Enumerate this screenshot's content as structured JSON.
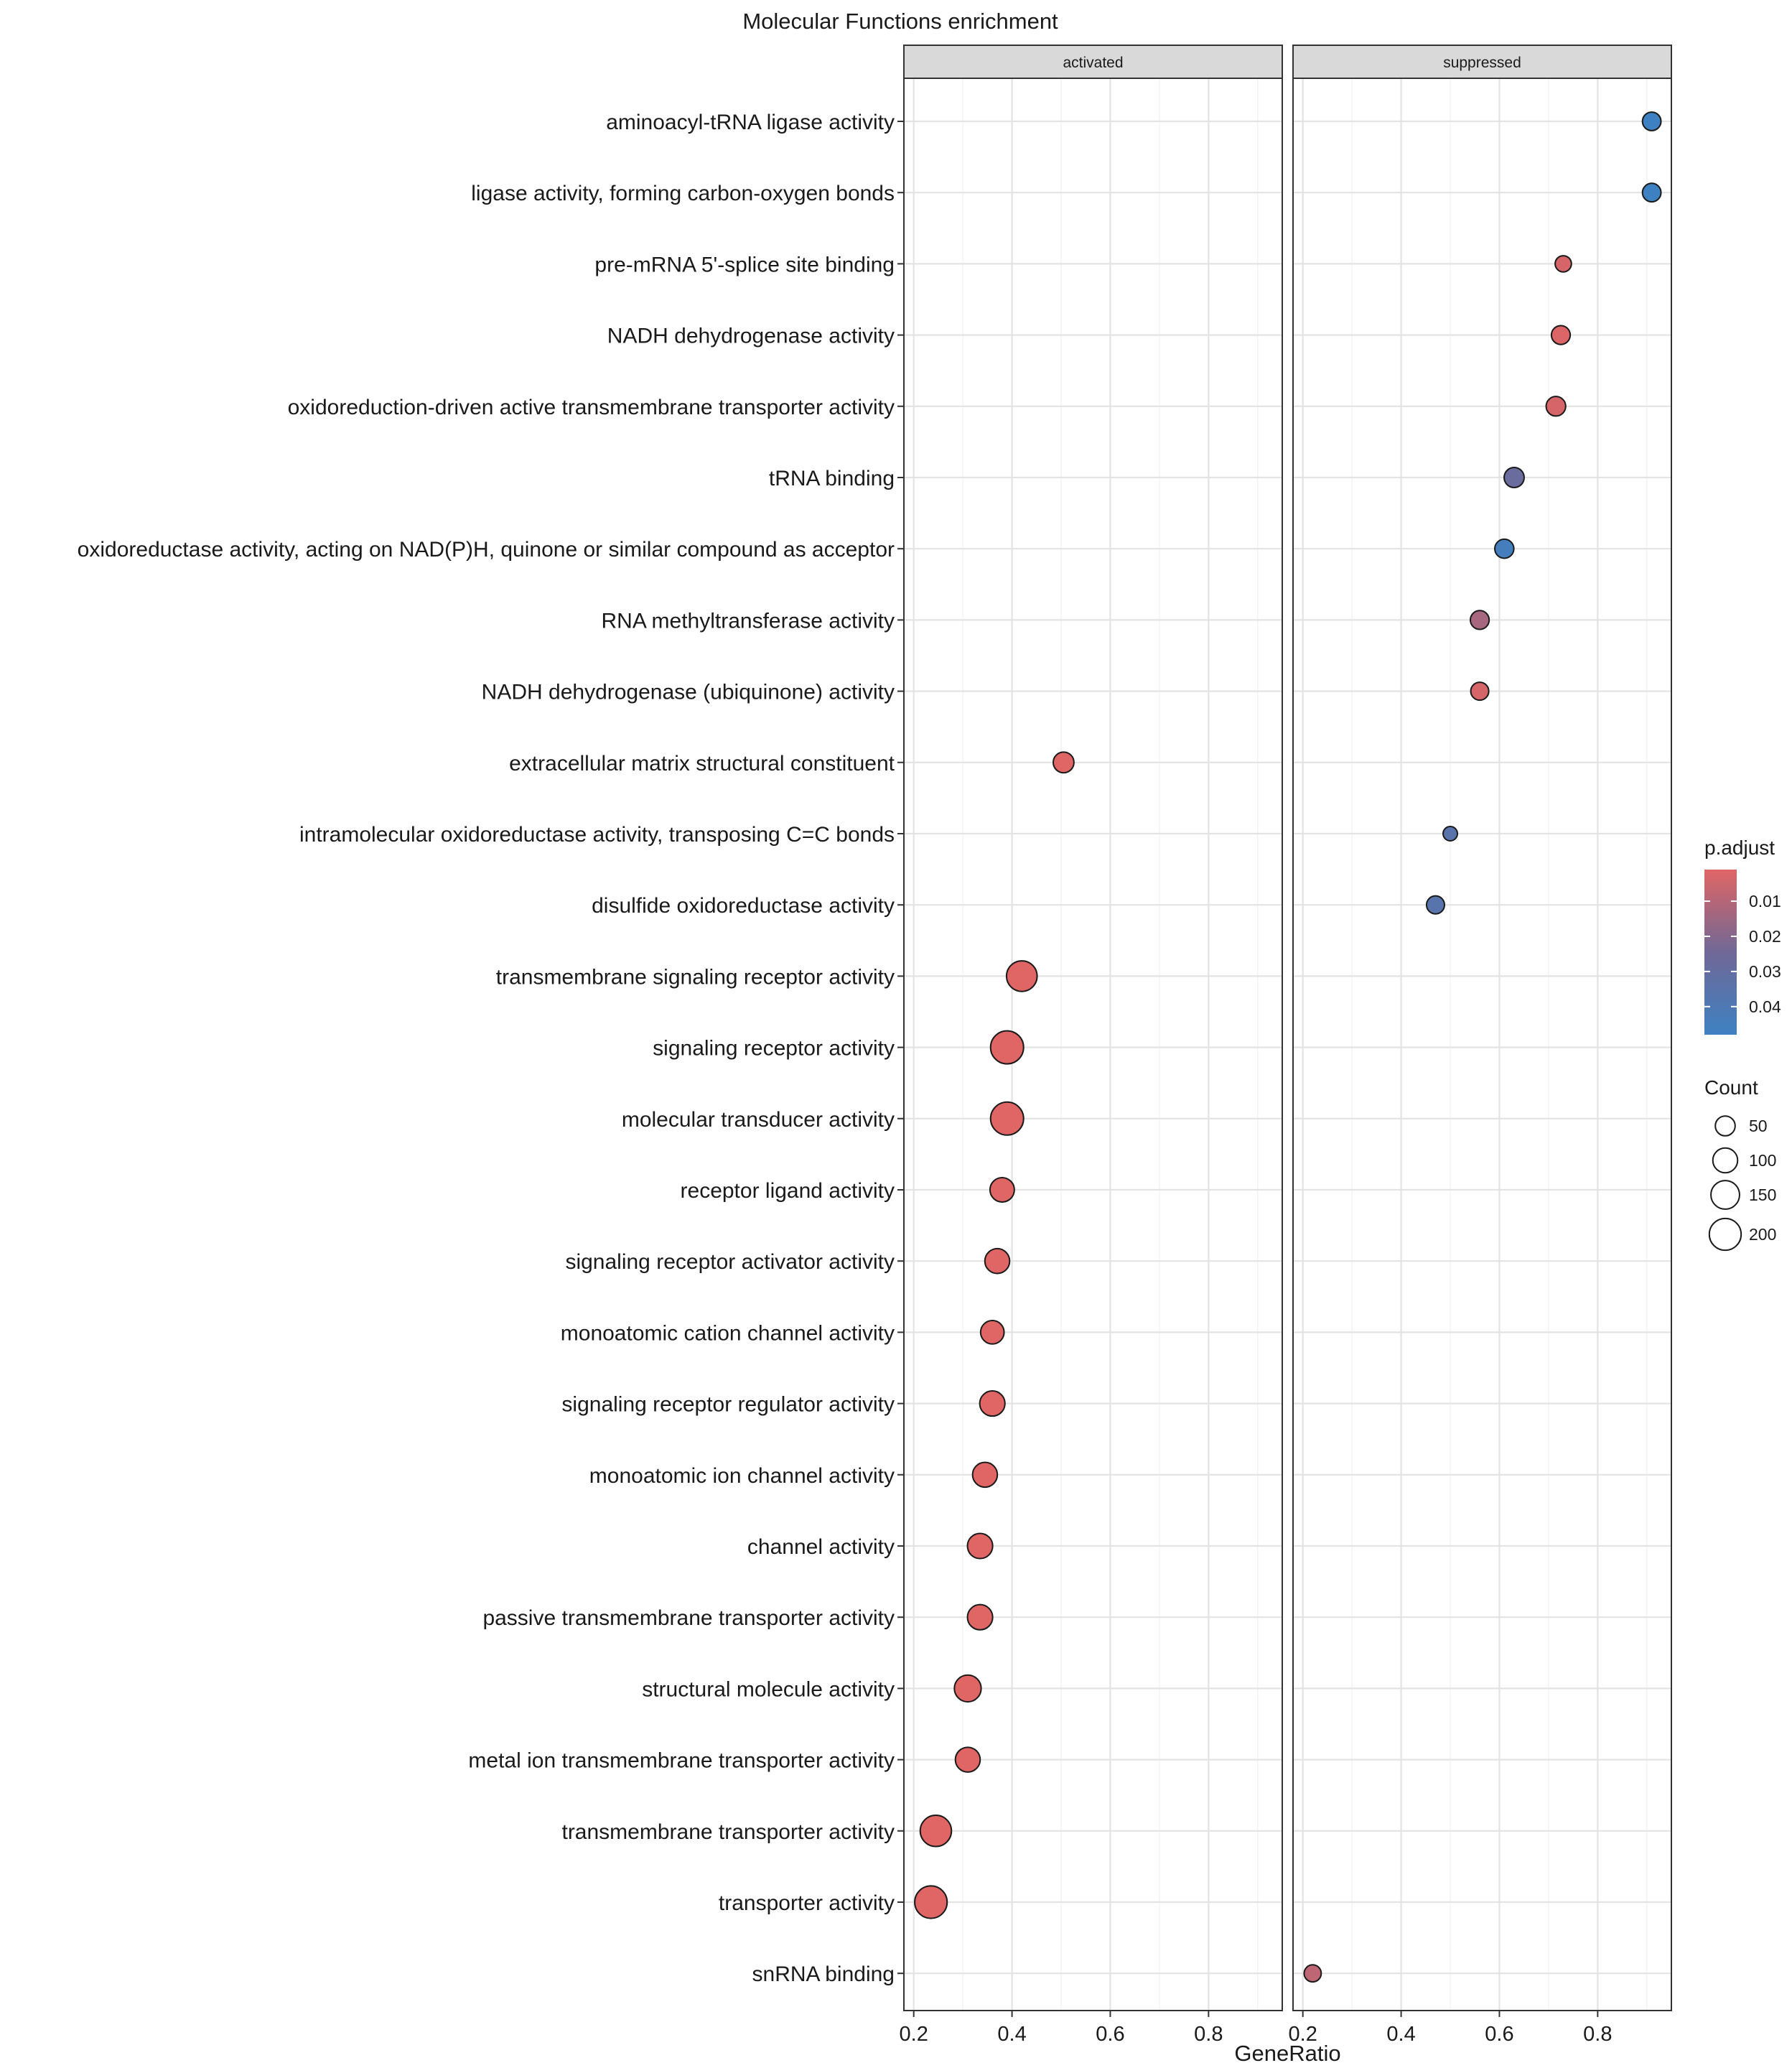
{
  "chart_data": {
    "type": "dotplot",
    "title": "Molecular Functions enrichment",
    "xlabel": "GeneRatio",
    "ylabel": "",
    "xlim": [
      0.18,
      0.95
    ],
    "x_ticks": [
      0.2,
      0.4,
      0.6,
      0.8
    ],
    "x_tick_labels": [
      "0.2",
      "0.4",
      "0.6",
      "0.8"
    ],
    "grid": true,
    "panels": [
      "activated",
      "suppressed"
    ],
    "categories": [
      "aminoacyl-tRNA ligase activity",
      "ligase activity, forming carbon-oxygen bonds",
      "pre-mRNA 5'-splice site binding",
      "NADH dehydrogenase activity",
      "oxidoreduction-driven active transmembrane transporter activity",
      "tRNA binding",
      "oxidoreductase activity, acting on NAD(P)H, quinone or similar compound as acceptor",
      "RNA methyltransferase activity",
      "NADH dehydrogenase (ubiquinone) activity",
      "extracellular matrix structural constituent",
      "intramolecular oxidoreductase activity, transposing C=C bonds",
      "disulfide oxidoreductase activity",
      "transmembrane signaling receptor activity",
      "signaling receptor activity",
      "molecular transducer activity",
      "receptor ligand activity",
      "signaling receptor activator activity",
      "monoatomic cation channel activity",
      "signaling receptor regulator activity",
      "monoatomic ion channel activity",
      "channel activity",
      "passive transmembrane transporter activity",
      "structural molecule activity",
      "metal ion transmembrane transporter activity",
      "transmembrane transporter activity",
      "transporter activity",
      "snRNA binding"
    ],
    "points": [
      {
        "category": "aminoacyl-tRNA ligase activity",
        "panel": "suppressed",
        "gene_ratio": 0.91,
        "count": 40,
        "p_adjust": 0.048
      },
      {
        "category": "ligase activity, forming carbon-oxygen bonds",
        "panel": "suppressed",
        "gene_ratio": 0.91,
        "count": 40,
        "p_adjust": 0.048
      },
      {
        "category": "pre-mRNA 5'-splice site binding",
        "panel": "suppressed",
        "gene_ratio": 0.73,
        "count": 25,
        "p_adjust": 0.003
      },
      {
        "category": "NADH dehydrogenase activity",
        "panel": "suppressed",
        "gene_ratio": 0.725,
        "count": 42,
        "p_adjust": 0.002
      },
      {
        "category": "oxidoreduction-driven active transmembrane transporter activity",
        "panel": "suppressed",
        "gene_ratio": 0.715,
        "count": 48,
        "p_adjust": 0.003
      },
      {
        "category": "tRNA binding",
        "panel": "suppressed",
        "gene_ratio": 0.63,
        "count": 52,
        "p_adjust": 0.028
      },
      {
        "category": "oxidoreductase activity, acting on NAD(P)H, quinone or similar compound as acceptor",
        "panel": "suppressed",
        "gene_ratio": 0.61,
        "count": 44,
        "p_adjust": 0.045
      },
      {
        "category": "RNA methyltransferase activity",
        "panel": "suppressed",
        "gene_ratio": 0.56,
        "count": 42,
        "p_adjust": 0.013
      },
      {
        "category": "NADH dehydrogenase (ubiquinone) activity",
        "panel": "suppressed",
        "gene_ratio": 0.56,
        "count": 36,
        "p_adjust": 0.003
      },
      {
        "category": "extracellular matrix structural constituent",
        "panel": "activated",
        "gene_ratio": 0.505,
        "count": 58,
        "p_adjust": 0.001
      },
      {
        "category": "intramolecular oxidoreductase activity, transposing C=C bonds",
        "panel": "suppressed",
        "gene_ratio": 0.5,
        "count": 15,
        "p_adjust": 0.035
      },
      {
        "category": "disulfide oxidoreductase activity",
        "panel": "suppressed",
        "gene_ratio": 0.47,
        "count": 36,
        "p_adjust": 0.036
      },
      {
        "category": "transmembrane signaling receptor activity",
        "panel": "activated",
        "gene_ratio": 0.42,
        "count": 180,
        "p_adjust": 0.001
      },
      {
        "category": "signaling receptor activity",
        "panel": "activated",
        "gene_ratio": 0.39,
        "count": 220,
        "p_adjust": 0.001
      },
      {
        "category": "molecular transducer activity",
        "panel": "activated",
        "gene_ratio": 0.39,
        "count": 220,
        "p_adjust": 0.001
      },
      {
        "category": "receptor ligand activity",
        "panel": "activated",
        "gene_ratio": 0.38,
        "count": 95,
        "p_adjust": 0.001
      },
      {
        "category": "signaling receptor activator activity",
        "panel": "activated",
        "gene_ratio": 0.37,
        "count": 100,
        "p_adjust": 0.001
      },
      {
        "category": "monoatomic cation channel activity",
        "panel": "activated",
        "gene_ratio": 0.36,
        "count": 85,
        "p_adjust": 0.001
      },
      {
        "category": "signaling receptor regulator activity",
        "panel": "activated",
        "gene_ratio": 0.36,
        "count": 105,
        "p_adjust": 0.001
      },
      {
        "category": "monoatomic ion channel activity",
        "panel": "activated",
        "gene_ratio": 0.345,
        "count": 100,
        "p_adjust": 0.001
      },
      {
        "category": "channel activity",
        "panel": "activated",
        "gene_ratio": 0.335,
        "count": 105,
        "p_adjust": 0.001
      },
      {
        "category": "passive transmembrane transporter activity",
        "panel": "activated",
        "gene_ratio": 0.335,
        "count": 105,
        "p_adjust": 0.001
      },
      {
        "category": "structural molecule activity",
        "panel": "activated",
        "gene_ratio": 0.31,
        "count": 125,
        "p_adjust": 0.001
      },
      {
        "category": "metal ion transmembrane transporter activity",
        "panel": "activated",
        "gene_ratio": 0.31,
        "count": 100,
        "p_adjust": 0.001
      },
      {
        "category": "transmembrane transporter activity",
        "panel": "activated",
        "gene_ratio": 0.245,
        "count": 190,
        "p_adjust": 0.001
      },
      {
        "category": "transporter activity",
        "panel": "activated",
        "gene_ratio": 0.235,
        "count": 210,
        "p_adjust": 0.001
      },
      {
        "category": "snRNA binding",
        "panel": "suppressed",
        "gene_ratio": 0.22,
        "count": 30,
        "p_adjust": 0.008
      }
    ],
    "color_legend": {
      "title": "p.adjust",
      "min": 0.001,
      "max": 0.048,
      "low_color": "#E06565",
      "high_color": "#3E81C2",
      "ticks": [
        0.01,
        0.02,
        0.03,
        0.04
      ],
      "tick_labels": [
        "0.01",
        "0.02",
        "0.03",
        "0.04"
      ]
    },
    "size_legend": {
      "title": "Count",
      "values": [
        50,
        100,
        150,
        200
      ],
      "labels": [
        "50",
        "100",
        "150",
        "200"
      ]
    },
    "legend_position": "right"
  }
}
